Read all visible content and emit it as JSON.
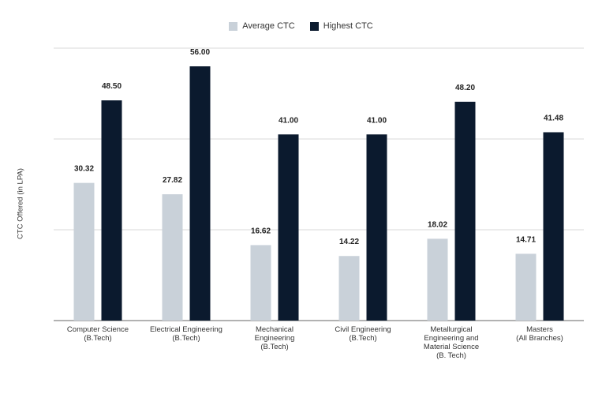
{
  "chart_data": {
    "type": "bar",
    "categories": [
      "Computer Science\n(B.Tech)",
      "Electrical Engineering\n(B.Tech)",
      "Mechanical\nEngineering\n(B.Tech)",
      "Civil Engineering\n(B.Tech)",
      "Metallurgical\nEngineering and\nMaterial Science\n(B. Tech)",
      "Masters\n(All Branches)"
    ],
    "series": [
      {
        "name": "Average CTC",
        "color": "#c9d1d9",
        "values": [
          30.32,
          27.82,
          16.62,
          14.22,
          18.02,
          14.71
        ],
        "labels": [
          "30.32",
          "27.82",
          "16.62",
          "14.22",
          "18.02",
          "14.71"
        ]
      },
      {
        "name": "Highest CTC",
        "color": "#0b1a2e",
        "values": [
          48.5,
          56.0,
          41.0,
          41.0,
          48.2,
          41.48
        ],
        "labels": [
          "48.50",
          "56.00",
          "41.00",
          "41.00",
          "48.20",
          "41.48"
        ]
      }
    ],
    "title": "",
    "xlabel": "",
    "ylabel": "CTC Offered (in LPA)",
    "ylim": [
      0,
      60
    ],
    "gridlines": [
      0,
      20,
      40,
      60
    ],
    "grid": true,
    "legend_position": "top-center"
  }
}
